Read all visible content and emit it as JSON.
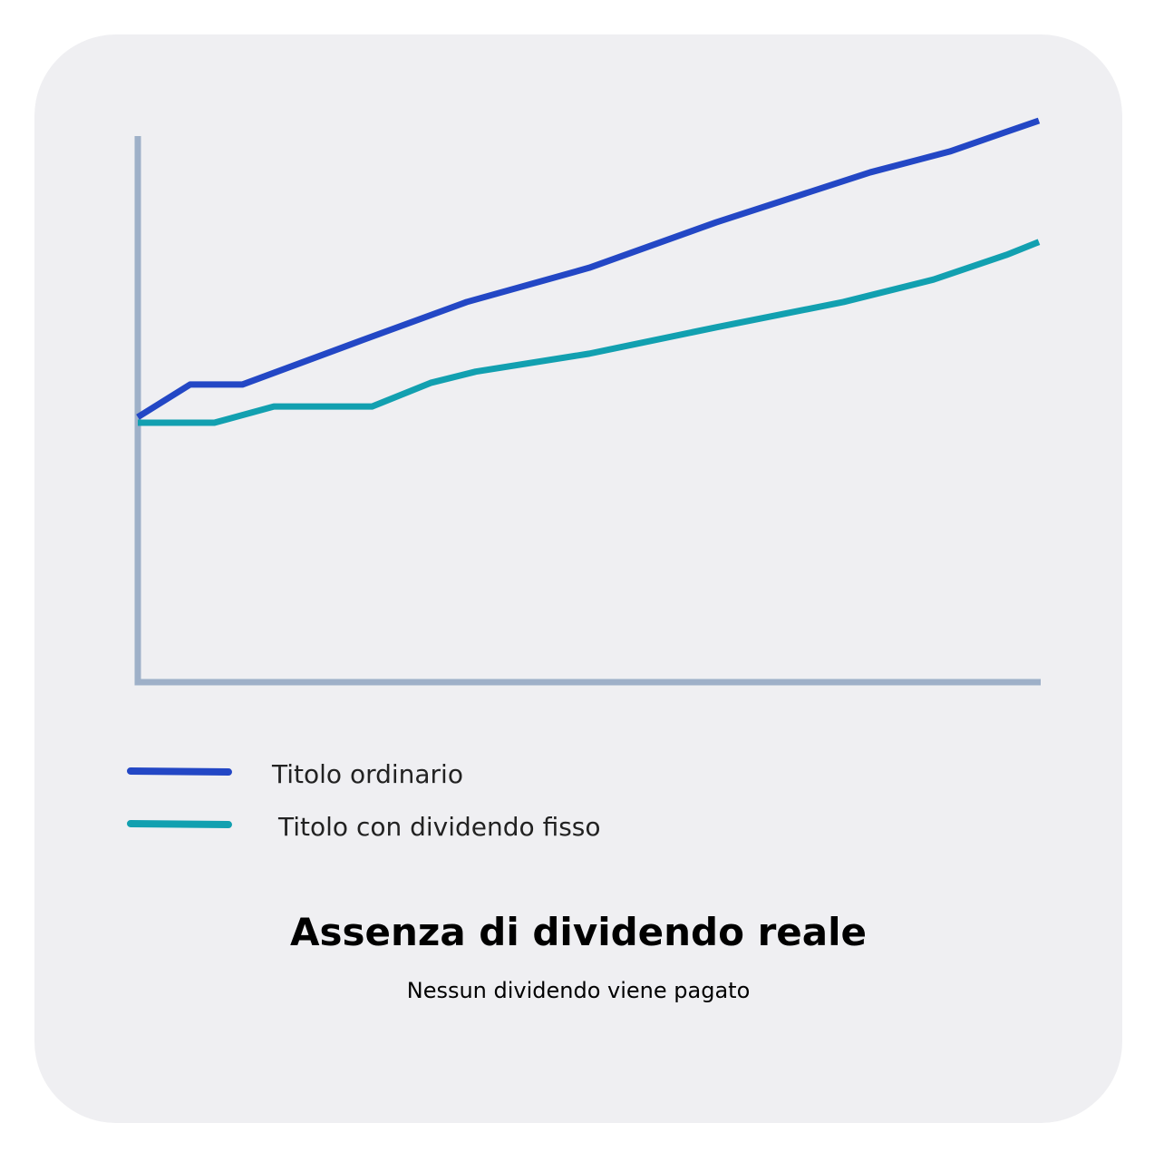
{
  "chart_data": {
    "type": "line",
    "title": "Assenza di dividendo reale",
    "subtitle": "Nessun dividendo viene pagato",
    "xlim": [
      0,
      100
    ],
    "ylim": [
      0,
      100
    ],
    "series": [
      {
        "name": "Titolo ordinario",
        "color": "#2347c5",
        "x": [
          0,
          5.8,
          11.6,
          24.9,
          36.5,
          50.1,
          64.2,
          81.3,
          90.1,
          96.2,
          100
        ],
        "values": [
          47.2,
          53.0,
          53.0,
          60.9,
          67.7,
          73.8,
          81.9,
          90.8,
          94.5,
          97.9,
          100
        ]
      },
      {
        "name": "Titolo con dividendo fisso",
        "color": "#12a0b0",
        "x": [
          0,
          8.5,
          15.1,
          26.0,
          32.5,
          37.5,
          50.1,
          64.2,
          78.3,
          88.3,
          96.4,
          100
        ],
        "values": [
          46.2,
          46.2,
          49.1,
          49.1,
          53.3,
          55.3,
          58.5,
          63.2,
          67.7,
          71.7,
          76.1,
          78.4
        ]
      }
    ]
  }
}
